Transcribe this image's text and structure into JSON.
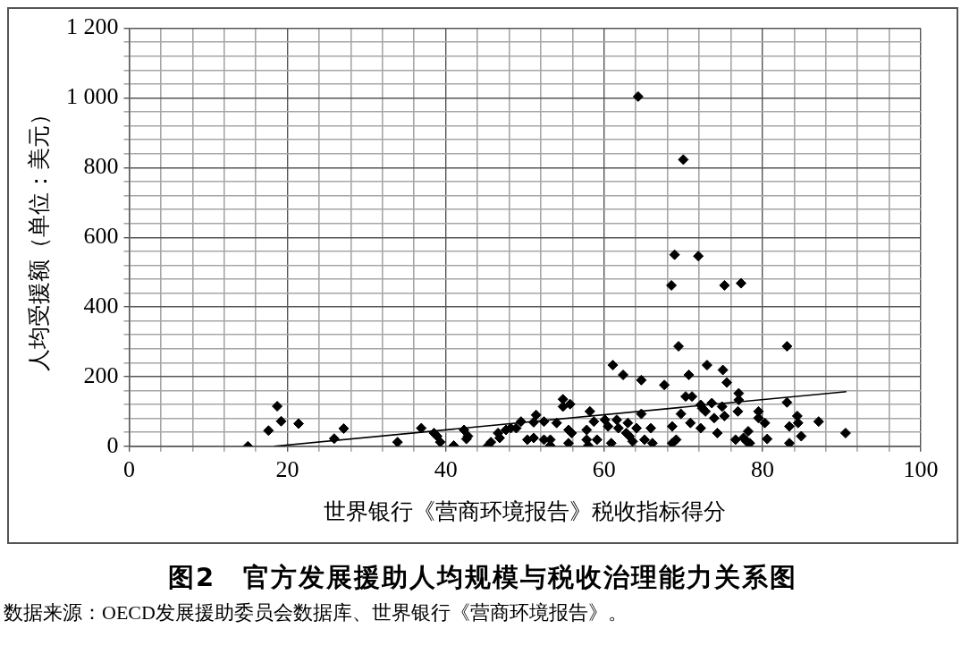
{
  "chart_data": {
    "type": "scatter",
    "title": "图2　官方发展援助人均规模与税收治理能力关系图",
    "xlabel": "世界银行《营商环境报告》税收指标得分",
    "ylabel": "人均受援额（单位：美元）",
    "annotations": [
      "数据来源：OECD发展援助委员会数据库、世界银行《营商环境报告》。"
    ],
    "xlim": [
      0,
      100
    ],
    "xticks": [
      0,
      {
        "value": 4,
        "label": null
      },
      {
        "value": 8,
        "label": null
      },
      {
        "value": 12,
        "label": null
      },
      {
        "value": 16,
        "label": null
      },
      20,
      {
        "value": 24,
        "label": null
      },
      {
        "value": 28,
        "label": null
      },
      {
        "value": 32,
        "label": null
      },
      {
        "value": 36,
        "label": null
      },
      40,
      {
        "value": 44,
        "label": null
      },
      {
        "value": 48,
        "label": null
      },
      {
        "value": 52,
        "label": null
      },
      {
        "value": 56,
        "label": null
      },
      60,
      {
        "value": 64,
        "label": null
      },
      {
        "value": 68,
        "label": null
      },
      {
        "value": 72,
        "label": null
      },
      {
        "value": 76,
        "label": null
      },
      80,
      {
        "value": 84,
        "label": null
      },
      {
        "value": 88,
        "label": null
      },
      {
        "value": 92,
        "label": null
      },
      {
        "value": 96,
        "label": null
      },
      100
    ],
    "ylim": [
      0,
      1200
    ],
    "yticks": [
      0,
      {
        "value": 40,
        "label": null
      },
      {
        "value": 80,
        "label": null
      },
      {
        "value": 120,
        "label": null
      },
      {
        "value": 160,
        "label": null
      },
      200,
      {
        "value": 240,
        "label": null
      },
      {
        "value": 280,
        "label": null
      },
      {
        "value": 320,
        "label": null
      },
      {
        "value": 360,
        "label": null
      },
      400,
      {
        "value": 440,
        "label": null
      },
      {
        "value": 480,
        "label": null
      },
      {
        "value": 520,
        "label": null
      },
      {
        "value": 560,
        "label": null
      },
      600,
      {
        "value": 640,
        "label": null
      },
      {
        "value": 680,
        "label": null
      },
      {
        "value": 720,
        "label": null
      },
      {
        "value": 760,
        "label": null
      },
      800,
      {
        "value": 840,
        "label": null
      },
      {
        "value": 880,
        "label": null
      },
      {
        "value": 920,
        "label": null
      },
      {
        "value": 960,
        "label": null
      },
      {
        "value": 1000,
        "label": "1 000"
      },
      {
        "value": 1040,
        "label": null
      },
      {
        "value": 1080,
        "label": null
      },
      {
        "value": 1120,
        "label": null
      },
      {
        "value": 1160,
        "label": null
      },
      {
        "value": 1200,
        "label": "1 200"
      }
    ],
    "grid": true,
    "series": [
      {
        "color": "#000000",
        "marker": "diamond",
        "x": [
          15,
          17.6,
          18.7,
          19.2,
          21.4,
          25.9,
          27.1,
          33.9,
          36.9,
          38.5,
          38.9,
          39.3,
          41,
          42.3,
          42.8,
          42.6,
          45.3,
          45.7,
          46.6,
          46.8,
          47.6,
          48.2,
          48.9,
          49.5,
          50.3,
          51.1,
          51.1,
          51.4,
          52.4,
          52.4,
          53.2,
          53.2,
          54,
          54.8,
          54.8,
          55.7,
          55.5,
          55.9,
          55.5,
          57.8,
          58.2,
          58.7,
          57.8,
          58,
          59.1,
          60.1,
          60.5,
          60.9,
          61.6,
          61.8,
          61.1,
          62.4,
          63,
          62.8,
          63.2,
          63.6,
          64.1,
          64.7,
          64.7,
          65.1,
          65.9,
          66.1,
          67.6,
          68.6,
          68.6,
          69.1,
          69.4,
          69.7,
          70.3,
          70.7,
          71.1,
          70.9,
          72.2,
          72.4,
          72.2,
          72.8,
          73,
          73.6,
          73.9,
          74.3,
          74.9,
          75,
          75.2,
          75.5,
          76.6,
          76.9,
          77,
          77,
          77.6,
          78,
          78.2,
          78.4,
          79.5,
          79.5,
          80.3,
          80.6,
          83.1,
          83.1,
          83.4,
          83.4,
          84.4,
          84.5,
          84.9,
          87.1,
          90.5,
          64.3,
          70,
          68.9,
          71.9,
          68.5,
          75.2,
          77.3
        ],
        "values": [
          0,
          45,
          115,
          72,
          65,
          22,
          51,
          12,
          52,
          38,
          29,
          12,
          2,
          47,
          29,
          21,
          1,
          12,
          38,
          24,
          47,
          52,
          52,
          71,
          19,
          24,
          69,
          90,
          71,
          19,
          19,
          2,
          67,
          135,
          114,
          121,
          47,
          38,
          9,
          47,
          100,
          71,
          19,
          2,
          19,
          76,
          57,
          9,
          76,
          52,
          233,
          205,
          67,
          38,
          29,
          14,
          52,
          190,
          93,
          19,
          52,
          9,
          176,
          57,
          9,
          19,
          287,
          93,
          143,
          205,
          143,
          67,
          119,
          109,
          52,
          100,
          233,
          124,
          81,
          38,
          114,
          219,
          87,
          183,
          19,
          100,
          152,
          133,
          24,
          14,
          43,
          9,
          100,
          81,
          67,
          21,
          287,
          126,
          57,
          9,
          87,
          67,
          29,
          71,
          38,
          1004,
          823,
          550,
          546,
          462,
          462,
          468
        ]
      },
      {
        "type": "line",
        "marker": "none",
        "color": "#000000",
        "x": [
          18.3,
          90.6
        ],
        "values": [
          0,
          157
        ]
      }
    ]
  }
}
